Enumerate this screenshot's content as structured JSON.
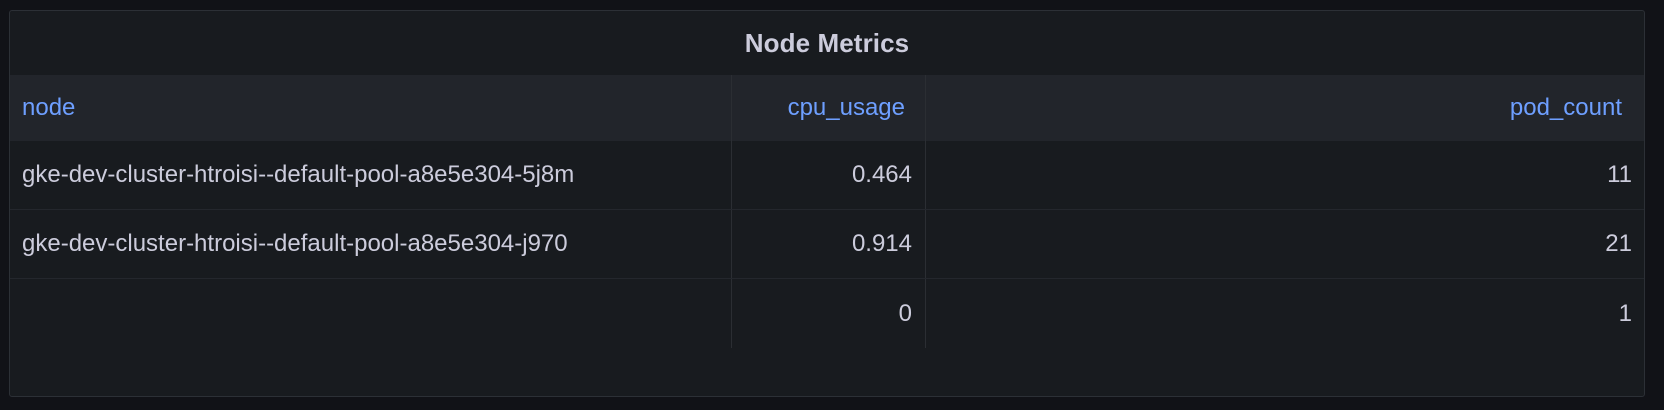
{
  "panel": {
    "title": "Node Metrics"
  },
  "table": {
    "columns": [
      "node",
      "cpu_usage",
      "pod_count"
    ],
    "rows": [
      {
        "node": "gke-dev-cluster-htroisi--default-pool-a8e5e304-5j8m",
        "cpu_usage": "0.464",
        "pod_count": "11"
      },
      {
        "node": "gke-dev-cluster-htroisi--default-pool-a8e5e304-j970",
        "cpu_usage": "0.914",
        "pod_count": "21"
      },
      {
        "node": "",
        "cpu_usage": "0",
        "pod_count": "1"
      }
    ]
  },
  "colors": {
    "background": "#111217",
    "panel": "#181b1f",
    "header_row": "#22252b",
    "header_text": "#6e9fff",
    "cell_text": "#ccccdc"
  }
}
